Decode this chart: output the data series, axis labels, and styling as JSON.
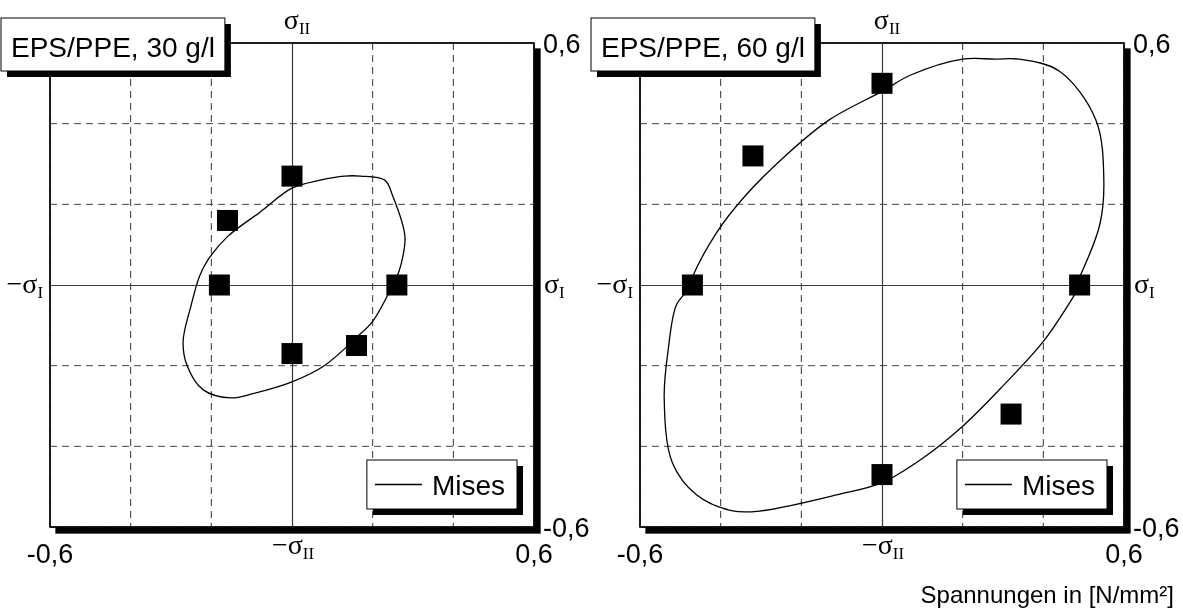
{
  "chart_data": [
    {
      "type": "scatter",
      "title": "EPS/PPE, 30 g/l",
      "xlabel": "σ$_{I}$",
      "ylabel": "σ$_{II}$",
      "annotations": [
        "−σ$_{I}$",
        "−σ$_{II}$"
      ],
      "xlim": [
        -0.6,
        0.6
      ],
      "ylim": [
        -0.6,
        0.6
      ],
      "xticks": [
        {
          "value": -0.6,
          "label": "-0,6"
        },
        {
          "value": -0.4,
          "label": null
        },
        {
          "value": -0.2,
          "label": null
        },
        {
          "value": 0.2,
          "label": null
        },
        {
          "value": 0.4,
          "label": null
        },
        {
          "value": 0.6,
          "label": "0,6"
        }
      ],
      "yticks": [
        {
          "value": -0.6,
          "label": "-0,6"
        },
        {
          "value": -0.4,
          "label": null
        },
        {
          "value": -0.2,
          "label": null
        },
        {
          "value": 0.2,
          "label": null
        },
        {
          "value": 0.4,
          "label": null
        },
        {
          "value": 0.6,
          "label": "0,6"
        }
      ],
      "grid": true,
      "legend": "bottom right",
      "series": [
        {
          "name": "Mises",
          "type": "line",
          "color": "#000000",
          "x": [
            0.24,
            0.2,
            0.16,
            0.08,
            0,
            -0.1,
            -0.15,
            -0.22,
            -0.26,
            -0.27,
            -0.25,
            -0.23,
            -0.21,
            -0.16,
            -0.08,
            0,
            0.07,
            0.13,
            0.17,
            0.23,
            0.25,
            0.28,
            0.27,
            0.26
          ],
          "values": [
            -0.02,
            -0.09,
            -0.13,
            -0.2,
            -0.24,
            -0.27,
            -0.28,
            -0.26,
            -0.2,
            -0.14,
            -0.05,
            0.02,
            0.06,
            0.12,
            0.18,
            0.24,
            0.26,
            0.27,
            0.27,
            0.26,
            0.22,
            0.12,
            0.05,
            0.02
          ]
        },
        {
          "type": "scatter",
          "marker": "square",
          "color": "#000000",
          "x": [
            0,
            -0.16,
            -0.18,
            0.26,
            0,
            0.16
          ],
          "values": [
            0.27,
            0.16,
            0,
            0,
            -0.17,
            -0.15
          ]
        }
      ]
    },
    {
      "type": "scatter",
      "title": "EPS/PPE, 60 g/l",
      "xlabel": "σ$_{I}$",
      "ylabel": "σ$_{II}$",
      "annotations": [
        "−σ$_{I}$",
        "−σ$_{II}$",
        "Spannungen in [N/mm²]"
      ],
      "xlim": [
        -0.6,
        0.6
      ],
      "ylim": [
        -0.6,
        0.6
      ],
      "xticks": [
        {
          "value": -0.6,
          "label": "-0,6"
        },
        {
          "value": -0.4,
          "label": null
        },
        {
          "value": -0.2,
          "label": null
        },
        {
          "value": 0.2,
          "label": null
        },
        {
          "value": 0.4,
          "label": null
        },
        {
          "value": 0.6,
          "label": "0,6"
        }
      ],
      "yticks": [
        {
          "value": -0.6,
          "label": "-0,6"
        },
        {
          "value": -0.4,
          "label": null
        },
        {
          "value": -0.2,
          "label": null
        },
        {
          "value": 0.2,
          "label": null
        },
        {
          "value": 0.4,
          "label": null
        },
        {
          "value": 0.6,
          "label": "0,6"
        }
      ],
      "grid": true,
      "legend": "bottom right",
      "series": [
        {
          "name": "Mises",
          "type": "line",
          "color": "#000000",
          "x": [
            0.48,
            0.4,
            0.3,
            0.2,
            0.1,
            0,
            -0.11,
            -0.3,
            -0.37,
            -0.46,
            -0.52,
            -0.54,
            -0.53,
            -0.51,
            -0.48,
            -0.47,
            -0.41,
            -0.34,
            -0.24,
            -0.13,
            0,
            0.07,
            0.2,
            0.28,
            0.34,
            0.44,
            0.53,
            0.55,
            0.54,
            0.49
          ],
          "values": [
            -0.02,
            -0.14,
            -0.25,
            -0.35,
            -0.43,
            -0.49,
            -0.52,
            -0.56,
            -0.56,
            -0.52,
            -0.44,
            -0.28,
            -0.16,
            -0.05,
            -0.01,
            0.02,
            0.13,
            0.22,
            0.32,
            0.41,
            0.48,
            0.52,
            0.56,
            0.56,
            0.56,
            0.53,
            0.41,
            0.26,
            0.15,
            0.02
          ]
        },
        {
          "type": "scatter",
          "marker": "square",
          "color": "#000000",
          "x": [
            0,
            -0.32,
            -0.47,
            0.49,
            0.32,
            0
          ],
          "values": [
            0.5,
            0.32,
            0,
            0,
            -0.32,
            -0.47
          ]
        }
      ]
    }
  ]
}
